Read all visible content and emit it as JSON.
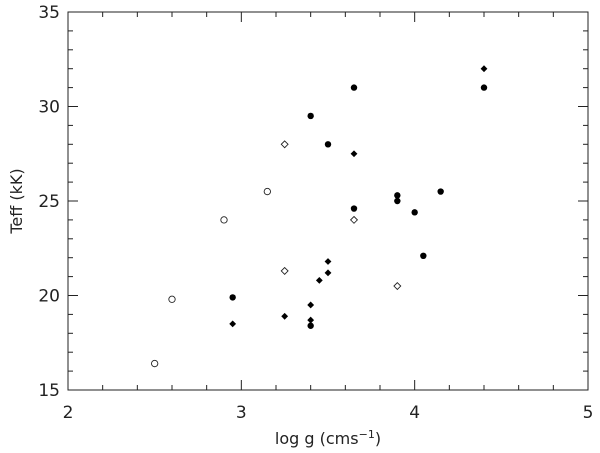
{
  "chart_data": {
    "type": "scatter",
    "title": "",
    "xlabel": "log g (cms",
    "xlabel_superscript": "−1",
    "xlabel_close": ")",
    "ylabel": "Teff (kK)",
    "xlim": [
      2,
      5
    ],
    "ylim": [
      15,
      35
    ],
    "x_major_ticks": [
      2,
      3,
      4,
      5
    ],
    "x_tick_labels": [
      "2",
      "3",
      "4",
      "5"
    ],
    "x_minor_step": 0.2,
    "y_major_ticks": [
      15,
      20,
      25,
      30,
      35
    ],
    "y_tick_labels": [
      "15",
      "20",
      "25",
      "30",
      "35"
    ],
    "y_minor_step": 1,
    "grid": false,
    "series": [
      {
        "marker": "filled-circle",
        "points": [
          [
            2.95,
            19.9
          ],
          [
            3.4,
            18.4
          ],
          [
            3.4,
            29.5
          ],
          [
            3.5,
            28.0
          ],
          [
            3.65,
            31.0
          ],
          [
            3.65,
            24.6
          ],
          [
            3.9,
            25.0
          ],
          [
            3.9,
            25.3
          ],
          [
            4.0,
            24.4
          ],
          [
            4.05,
            22.1
          ],
          [
            4.15,
            25.5
          ],
          [
            4.4,
            31.0
          ]
        ]
      },
      {
        "marker": "filled-diamond",
        "points": [
          [
            2.95,
            18.5
          ],
          [
            3.25,
            18.9
          ],
          [
            3.4,
            18.7
          ],
          [
            3.4,
            19.5
          ],
          [
            3.45,
            20.8
          ],
          [
            3.5,
            21.2
          ],
          [
            3.5,
            21.8
          ],
          [
            3.65,
            27.5
          ],
          [
            4.4,
            32.0
          ]
        ]
      },
      {
        "marker": "open-circle",
        "points": [
          [
            2.5,
            16.4
          ],
          [
            2.6,
            19.8
          ],
          [
            2.9,
            24.0
          ],
          [
            3.15,
            25.5
          ]
        ]
      },
      {
        "marker": "open-diamond",
        "points": [
          [
            3.25,
            28.0
          ],
          [
            3.25,
            21.3
          ],
          [
            3.65,
            24.0
          ],
          [
            3.9,
            20.5
          ]
        ]
      }
    ]
  }
}
